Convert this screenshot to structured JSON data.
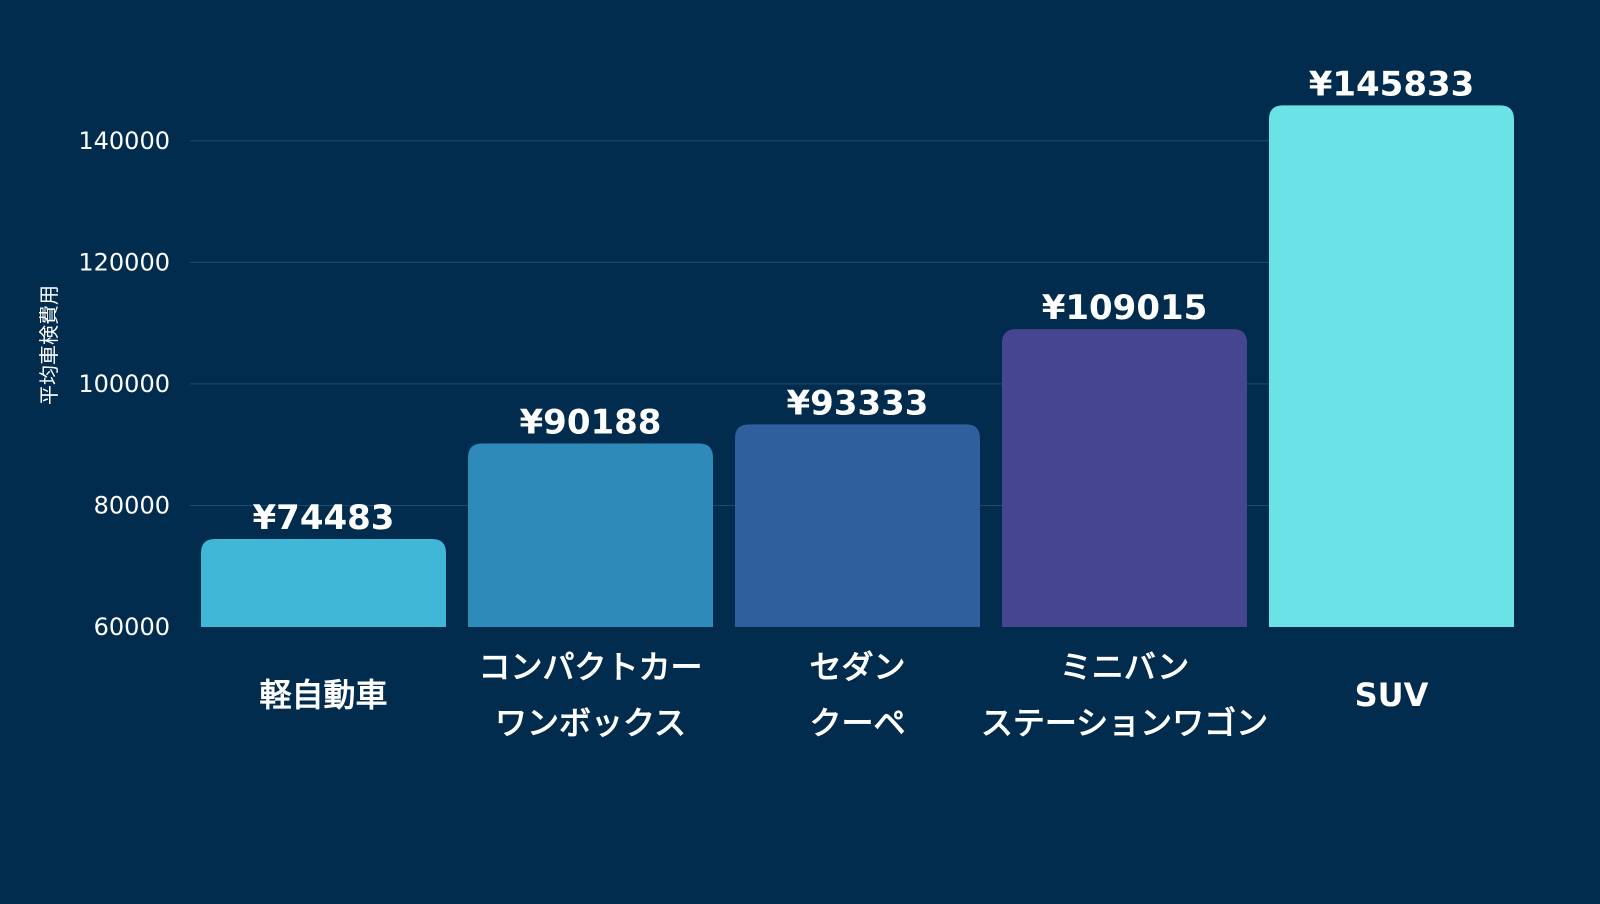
{
  "chart_data": {
    "type": "bar",
    "title": "",
    "xlabel": "",
    "ylabel": "平均車検費用",
    "ylim": [
      60000,
      150000
    ],
    "yticks": [
      60000,
      80000,
      100000,
      120000,
      140000
    ],
    "ytick_labels": [
      "60000",
      "80000",
      "100000",
      "120000",
      "140000"
    ],
    "grid": true,
    "categories": [
      [
        "軽自動車"
      ],
      [
        "コンパクトカー",
        "ワンボックス"
      ],
      [
        "セダン",
        "クーペ"
      ],
      [
        "ミニバン",
        "ステーションワゴン"
      ],
      [
        "SUV"
      ]
    ],
    "values": [
      74483,
      90188,
      93333,
      109015,
      145833
    ],
    "value_labels": [
      "¥74483",
      "¥90188",
      "¥93333",
      "¥109015",
      "¥145833"
    ],
    "colors": [
      "#41b7d7",
      "#2e8bb9",
      "#2f5f9c",
      "#464690",
      "#6be3e6"
    ],
    "background": "#012c4e",
    "grid_color": "#1f4a6b",
    "text_color": "#ffffff"
  }
}
